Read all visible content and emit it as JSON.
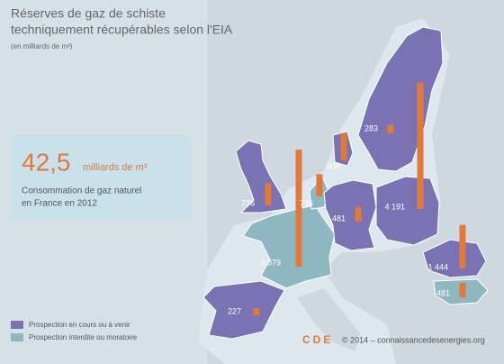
{
  "header": {
    "title_lines": [
      "Réserves de gaz de schiste",
      "techniquement récupérables selon l'EIA"
    ],
    "subtitle": "(en milliards de m³)"
  },
  "callout": {
    "value": "42,5",
    "unit": "milliards de m³",
    "text_lines": [
      "Consommation de gaz naturel",
      "en France en 2012"
    ]
  },
  "regions": [
    {
      "value": 736,
      "value_label": "736",
      "color": "#7b72b4"
    },
    {
      "value": 3879,
      "value_label": "3 879",
      "color": "#8fb7c1"
    },
    {
      "value": 736,
      "value_label": "736",
      "color": "#8fb7c1"
    },
    {
      "value": 906,
      "value_label": "906",
      "color": "#7b72b4"
    },
    {
      "value": 481,
      "value_label": "481",
      "color": "#7b72b4"
    },
    {
      "value": 4191,
      "value_label": "4 191",
      "color": "#7b72b4"
    },
    {
      "value": 283,
      "value_label": "283",
      "color": "#7b72b4"
    },
    {
      "value": 227,
      "value_label": "227",
      "color": "#7b72b4"
    },
    {
      "value": 1444,
      "value_label": "1 444",
      "color": "#7b72b4"
    },
    {
      "value": 481,
      "value_label": "481",
      "color": "#8fb7c1"
    }
  ],
  "bar_color": "#e07a3c",
  "legend": [
    {
      "label": "Prospection en cours ou à venir",
      "color": "#7b72b4"
    },
    {
      "label": "Prospection interdite ou moratoire",
      "color": "#8fb7c1"
    }
  ],
  "footer": {
    "logo": "CDE",
    "credit": "© 2014 – connaissancedesenergies.org"
  }
}
